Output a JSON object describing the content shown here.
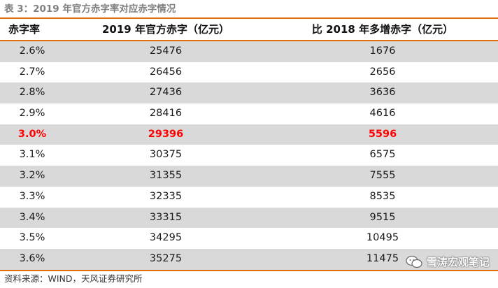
{
  "title": "表 3：2019 年官方赤字率对应赤字情况",
  "table": {
    "headers": [
      "赤字率",
      "2019 年官方赤字（亿元）",
      "比 2018 年多增赤字（亿元）"
    ],
    "rows": [
      {
        "rate": "2.6%",
        "deficit": "25476",
        "increase": "1676"
      },
      {
        "rate": "2.7%",
        "deficit": "26456",
        "increase": "2656"
      },
      {
        "rate": "2.8%",
        "deficit": "27436",
        "increase": "3636"
      },
      {
        "rate": "2.9%",
        "deficit": "28416",
        "increase": "4616"
      },
      {
        "rate": "3.0%",
        "deficit": "29396",
        "increase": "5596"
      },
      {
        "rate": "3.1%",
        "deficit": "30375",
        "increase": "6575"
      },
      {
        "rate": "3.2%",
        "deficit": "31355",
        "increase": "7555"
      },
      {
        "rate": "3.3%",
        "deficit": "32335",
        "increase": "8535"
      },
      {
        "rate": "3.4%",
        "deficit": "33315",
        "increase": "9515"
      },
      {
        "rate": "3.5%",
        "deficit": "34295",
        "increase": "10495"
      },
      {
        "rate": "3.6%",
        "deficit": "35275",
        "increase": "11475"
      }
    ]
  },
  "source": "资料来源：WIND，天风证券研究所",
  "watermark": "雪涛宏观笔记",
  "colors": {
    "accent": "#e46c0a",
    "highlight": "#ff0000",
    "shade": "#d9d9d9"
  }
}
